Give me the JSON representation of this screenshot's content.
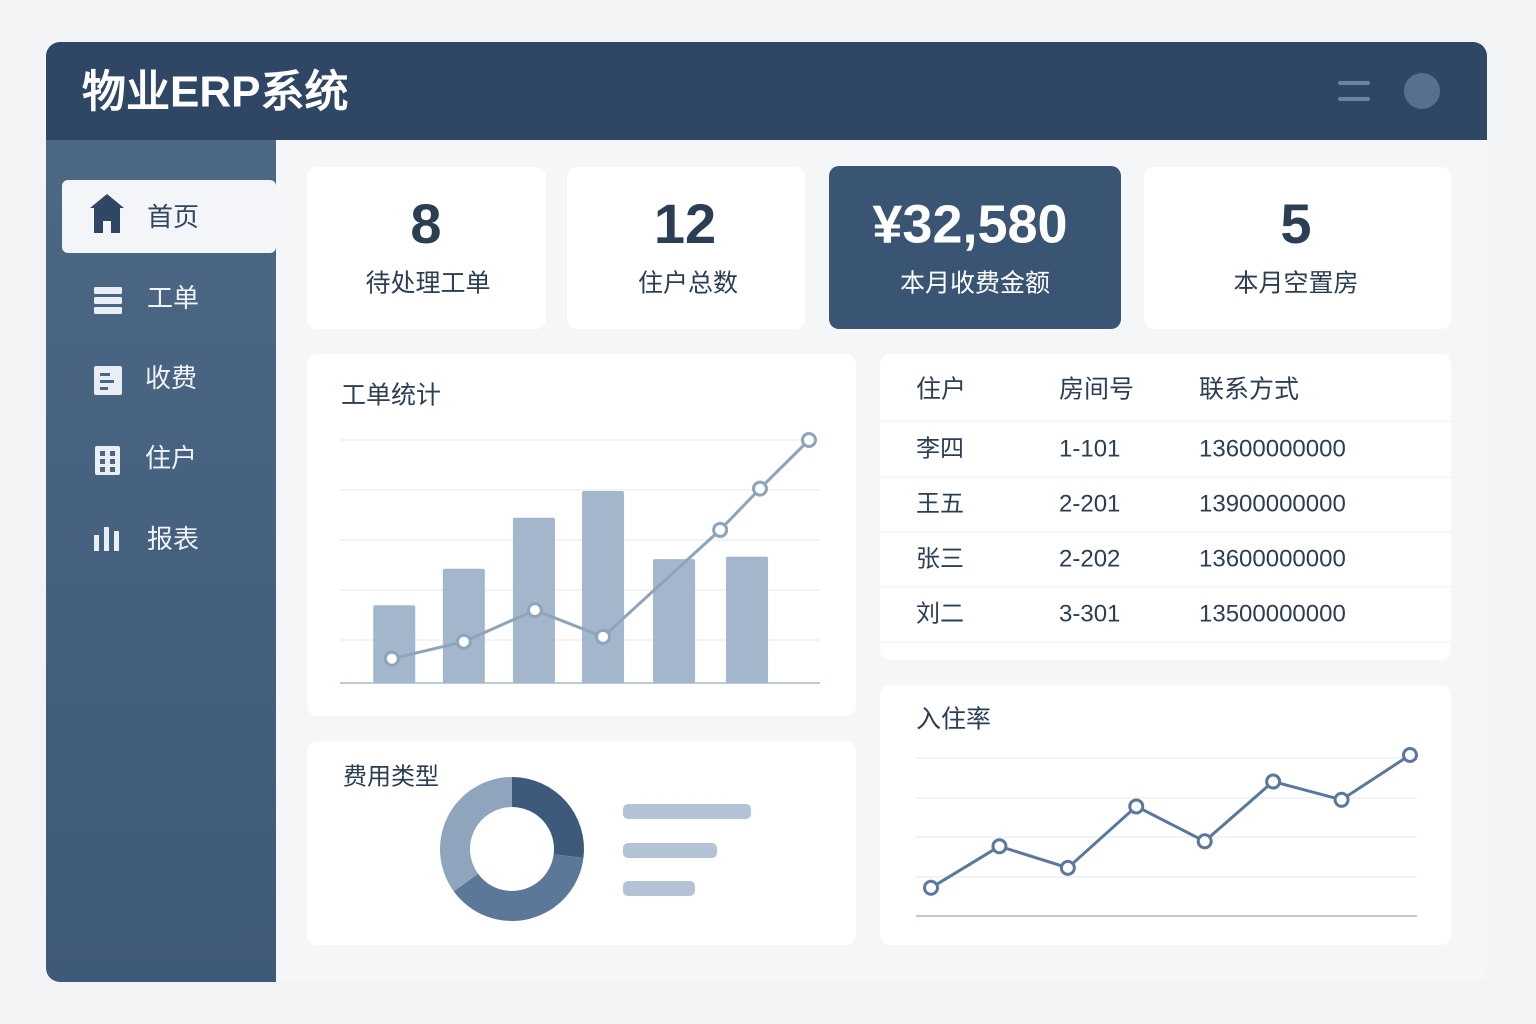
{
  "header": {
    "title": "物业ERP系统"
  },
  "sidebar": {
    "items": [
      "首页",
      "工单",
      "收费",
      "住户",
      "报表"
    ]
  },
  "stats": [
    {
      "value": 8,
      "label": "待处理工单"
    },
    {
      "value": 12,
      "label": "住户总数"
    },
    {
      "value": "¥32,580",
      "label": "本月收费金额"
    },
    {
      "value": 5,
      "label": "本月空置房"
    }
  ],
  "table": {
    "columns": [
      "住户",
      "房间号",
      "联系方式"
    ],
    "rows": [
      [
        "李四",
        "1-101",
        "13600000000"
      ],
      [
        "王五",
        "2-201",
        "13900000000"
      ],
      [
        "张三",
        "2-202",
        "13600000000"
      ],
      [
        "刘二",
        "3-301",
        "13500000000"
      ]
    ]
  },
  "chart_data": [
    {
      "type": "bar",
      "title": "工单统计",
      "xlim": [
        0,
        10
      ],
      "ylim": [
        0,
        10
      ],
      "series": [
        {
          "type": "bar",
          "color": "#a3b6cb",
          "x": [
            1.13,
            2.58,
            4.04,
            5.48,
            6.96,
            8.48
          ],
          "values": [
            3.2,
            4.7,
            6.8,
            7.9,
            5.1,
            5.2
          ]
        },
        {
          "type": "line",
          "color": "#8ea4bd",
          "x": [
            1.08,
            2.58,
            4.06,
            5.48,
            7.92,
            8.75,
            9.77
          ],
          "values": [
            1.0,
            1.7,
            3.0,
            1.9,
            6.3,
            8.0,
            10.0
          ]
        }
      ]
    },
    {
      "type": "pie",
      "title": "费用类型",
      "values": [
        27,
        38,
        35
      ],
      "colors": [
        "#3e5a7b",
        "#5b7899",
        "#8fa5be"
      ]
    },
    {
      "type": "line",
      "title": "入住率",
      "ylim": [
        0,
        10
      ],
      "color": "#5a789b",
      "categories": [
        null,
        null,
        null,
        null,
        null,
        null,
        null,
        null
      ],
      "values": [
        1.7,
        4.2,
        2.9,
        6.6,
        4.5,
        8.1,
        7.0,
        9.7
      ]
    }
  ]
}
